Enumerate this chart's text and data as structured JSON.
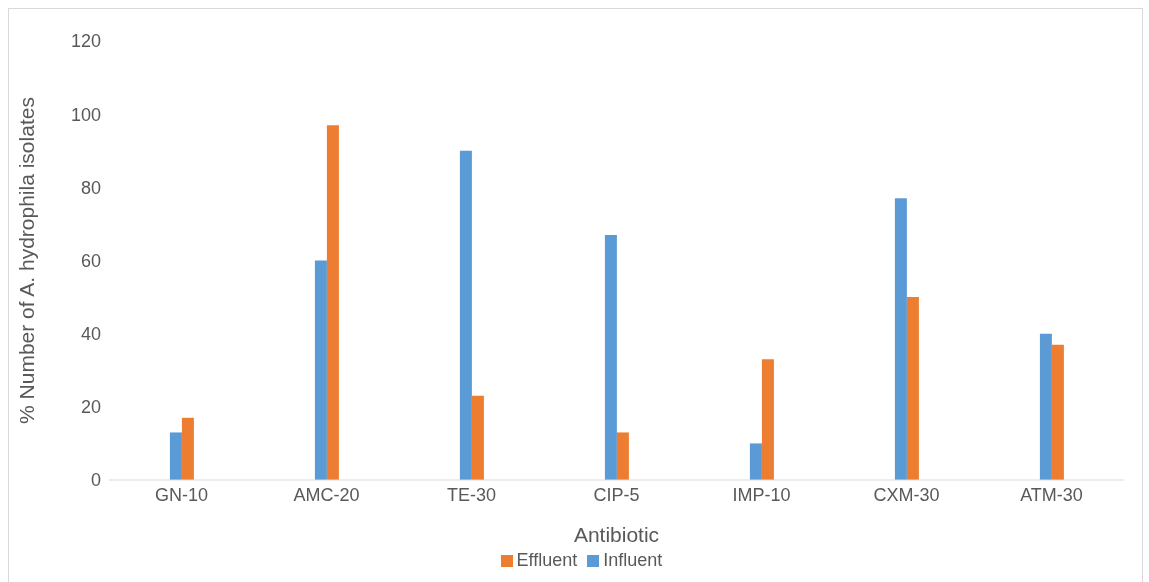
{
  "chart_data": {
    "type": "bar",
    "xlabel": "Antibiotic",
    "ylabel": "% Number of A. hydrophila isolates",
    "categories": [
      "GN-10",
      "AMC-20",
      "TE-30",
      "CIP-5",
      "IMP-10",
      "CXM-30",
      "ATM-30"
    ],
    "series": [
      {
        "name": "Influent",
        "color": "#5b9bd5",
        "values": [
          13,
          60,
          90,
          67,
          10,
          77,
          40
        ]
      },
      {
        "name": "Effluent",
        "color": "#ed7d31",
        "values": [
          17,
          97,
          23,
          13,
          33,
          50,
          37
        ]
      }
    ],
    "ylim": [
      0,
      120
    ],
    "yticks": [
      0,
      20,
      40,
      60,
      80,
      100,
      120
    ],
    "grid": false,
    "legend": "bottom"
  }
}
